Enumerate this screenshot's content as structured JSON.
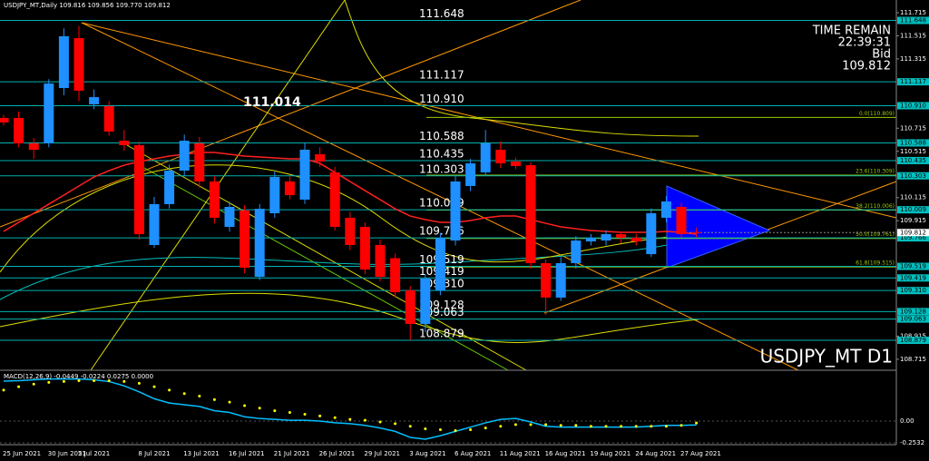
{
  "chart_data": {
    "type": "candlestick",
    "title": "USDJPY_MT,Daily 109.816 109.856 109.770 109.812",
    "time_remain_label": "TIME REMAIN",
    "time_remain": "22:39:31",
    "bid_label": "Bid",
    "bid": 109.812,
    "symbol_label": "USDJPY_MT D1",
    "annotation": "111.014",
    "categories": [
      "25 Jun 2021",
      null,
      null,
      "30 Jun 2021",
      null,
      "5 Jul 2021",
      null,
      null,
      null,
      "8 Jul 2021",
      null,
      null,
      "13 Jul 2021",
      null,
      null,
      "16 Jul 2021",
      null,
      null,
      "21 Jul 2021",
      null,
      null,
      "26 Jul 2021",
      null,
      null,
      "29 Jul 2021",
      null,
      null,
      "3 Aug 2021",
      null,
      null,
      "6 Aug 2021",
      null,
      null,
      "11 Aug 2021",
      null,
      null,
      "16 Aug 2021",
      null,
      null,
      "19 Aug 2021",
      null,
      null,
      "24 Aug 2021",
      null,
      null,
      "27 Aug 2021",
      null
    ],
    "open": [
      110.804,
      110.804,
      110.584,
      110.584,
      111.063,
      111.495,
      110.922,
      110.906,
      110.607,
      110.568,
      109.704,
      110.058,
      110.348,
      110.584,
      110.254,
      109.861,
      110.003,
      109.429,
      109.979,
      110.254,
      110.097,
      110.49,
      110.333,
      109.94,
      109.861,
      109.704,
      109.59,
      109.311,
      109.021,
      109.311,
      109.743,
      110.215,
      110.333,
      110.529,
      110.427,
      110.395,
      109.547,
      109.249,
      109.547,
      109.735,
      109.743,
      109.798,
      109.767,
      109.625,
      109.94,
      110.034,
      109.816
    ],
    "high": [
      110.83,
      110.86,
      110.63,
      111.14,
      111.58,
      111.6,
      111.05,
      110.95,
      110.7,
      110.6,
      110.12,
      110.4,
      110.66,
      110.64,
      110.3,
      110.08,
      110.05,
      110.06,
      110.34,
      110.3,
      110.59,
      110.55,
      110.38,
      109.99,
      109.9,
      109.75,
      109.63,
      109.35,
      109.45,
      109.81,
      110.3,
      110.45,
      110.7,
      110.6,
      110.46,
      110.42,
      109.58,
      109.6,
      109.78,
      109.8,
      109.83,
      109.82,
      109.8,
      110.02,
      110.13,
      110.07,
      109.856
    ],
    "low": [
      110.74,
      110.55,
      110.45,
      110.55,
      111.0,
      110.95,
      110.88,
      110.65,
      110.52,
      109.75,
      109.68,
      110.02,
      110.3,
      110.2,
      109.89,
      109.82,
      109.46,
      109.4,
      109.94,
      110.1,
      110.06,
      110.38,
      109.83,
      109.66,
      109.45,
      109.39,
      109.25,
      108.88,
      108.95,
      109.27,
      109.7,
      110.17,
      110.3,
      110.37,
      110.36,
      109.5,
      109.1,
      109.22,
      109.5,
      109.7,
      109.7,
      109.72,
      109.7,
      109.6,
      109.9,
      109.77,
      109.77
    ],
    "close": [
      110.765,
      110.584,
      110.529,
      111.102,
      111.511,
      111.04,
      110.984,
      110.686,
      110.568,
      109.798,
      110.058,
      110.348,
      110.607,
      110.254,
      109.94,
      110.034,
      109.508,
      110.018,
      110.293,
      110.136,
      110.529,
      110.427,
      109.861,
      109.704,
      109.492,
      109.429,
      109.296,
      109.021,
      109.414,
      109.767,
      110.254,
      110.411,
      110.584,
      110.411,
      110.388,
      109.547,
      109.249,
      109.547,
      109.743,
      109.767,
      109.798,
      109.767,
      109.735,
      109.979,
      110.081,
      109.798,
      109.812
    ],
    "up_color": "#1e90ff",
    "down_color": "#ff0000",
    "moving_average": {
      "color": "#ff2020",
      "values": [
        109.822,
        109.9,
        109.979,
        110.058,
        110.136,
        110.215,
        110.293,
        110.348,
        110.395,
        110.427,
        110.45,
        110.474,
        110.49,
        110.505,
        110.505,
        110.49,
        110.474,
        110.466,
        110.458,
        110.45,
        110.45,
        110.411,
        110.333,
        110.254,
        110.175,
        110.097,
        110.018,
        109.955,
        109.924,
        109.9,
        109.9,
        109.916,
        109.94,
        109.955,
        109.955,
        109.924,
        109.892,
        109.861,
        109.845,
        109.83,
        109.822,
        109.814,
        109.814,
        109.814,
        109.822,
        109.814,
        109.798
      ]
    },
    "ylim": [
      108.62,
      111.825
    ],
    "yticks": [
      111.715,
      111.515,
      111.315,
      110.715,
      110.515,
      110.115,
      109.915,
      108.915,
      108.715
    ],
    "levels": [
      {
        "value": 111.648,
        "label": "111.648"
      },
      {
        "value": 111.117,
        "label": "111.117"
      },
      {
        "value": 110.91,
        "label": "110.910"
      },
      {
        "value": 110.588,
        "label": "110.588"
      },
      {
        "value": 110.435,
        "label": "110.435"
      },
      {
        "value": 110.303,
        "label": "110.303"
      },
      {
        "value": 110.009,
        "label": "110.009"
      },
      {
        "value": 109.766,
        "label": "109.766"
      },
      {
        "value": 109.519,
        "label": "109.519"
      },
      {
        "value": 109.419,
        "label": "109.419"
      },
      {
        "value": 109.31,
        "label": "109.310"
      },
      {
        "value": 109.128,
        "label": "109.128"
      },
      {
        "value": 109.063,
        "label": "109.063"
      },
      {
        "value": 108.879,
        "label": "108.879"
      }
    ],
    "fib_levels": [
      {
        "value": 110.809,
        "label": "0.0(110.809)"
      },
      {
        "value": 110.309,
        "label": "23.6(110.309)"
      },
      {
        "value": 110.006,
        "label": "38.2(110.006)"
      },
      {
        "value": 109.761,
        "label": "50.0(109.761)"
      },
      {
        "value": 109.515,
        "label": "61.8(109.515)"
      }
    ],
    "macd": {
      "label": "MACD(12,26,9) -0.0449 -0.0224 0.0275 0.0000",
      "ylim": [
        -0.274,
        0.57
      ],
      "yticks": [
        {
          "value": 0,
          "label": "0.00"
        },
        -0.2532
      ],
      "main": {
        "color": "#00bfff",
        "values": [
          0.464,
          0.47,
          0.48,
          0.49,
          0.49,
          0.49,
          0.48,
          0.46,
          0.41,
          0.34,
          0.26,
          0.21,
          0.19,
          0.17,
          0.12,
          0.1,
          0.05,
          0.03,
          0.02,
          0.01,
          0.01,
          0.0,
          -0.02,
          -0.03,
          -0.05,
          -0.08,
          -0.12,
          -0.19,
          -0.21,
          -0.17,
          -0.12,
          -0.07,
          -0.02,
          0.02,
          0.03,
          -0.01,
          -0.06,
          -0.07,
          -0.07,
          -0.07,
          -0.07,
          -0.07,
          -0.07,
          -0.06,
          -0.05,
          -0.05,
          -0.045
        ]
      },
      "signal": {
        "color": "#ffff00",
        "values": [
          0.36,
          0.4,
          0.43,
          0.45,
          0.46,
          0.47,
          0.47,
          0.47,
          0.46,
          0.44,
          0.4,
          0.36,
          0.32,
          0.29,
          0.25,
          0.22,
          0.18,
          0.15,
          0.12,
          0.1,
          0.08,
          0.06,
          0.04,
          0.02,
          0.01,
          -0.01,
          -0.03,
          -0.06,
          -0.09,
          -0.1,
          -0.11,
          -0.1,
          -0.08,
          -0.06,
          -0.04,
          -0.04,
          -0.04,
          -0.05,
          -0.05,
          -0.06,
          -0.06,
          -0.06,
          -0.06,
          -0.06,
          -0.06,
          -0.05,
          -0.022
        ]
      }
    }
  }
}
